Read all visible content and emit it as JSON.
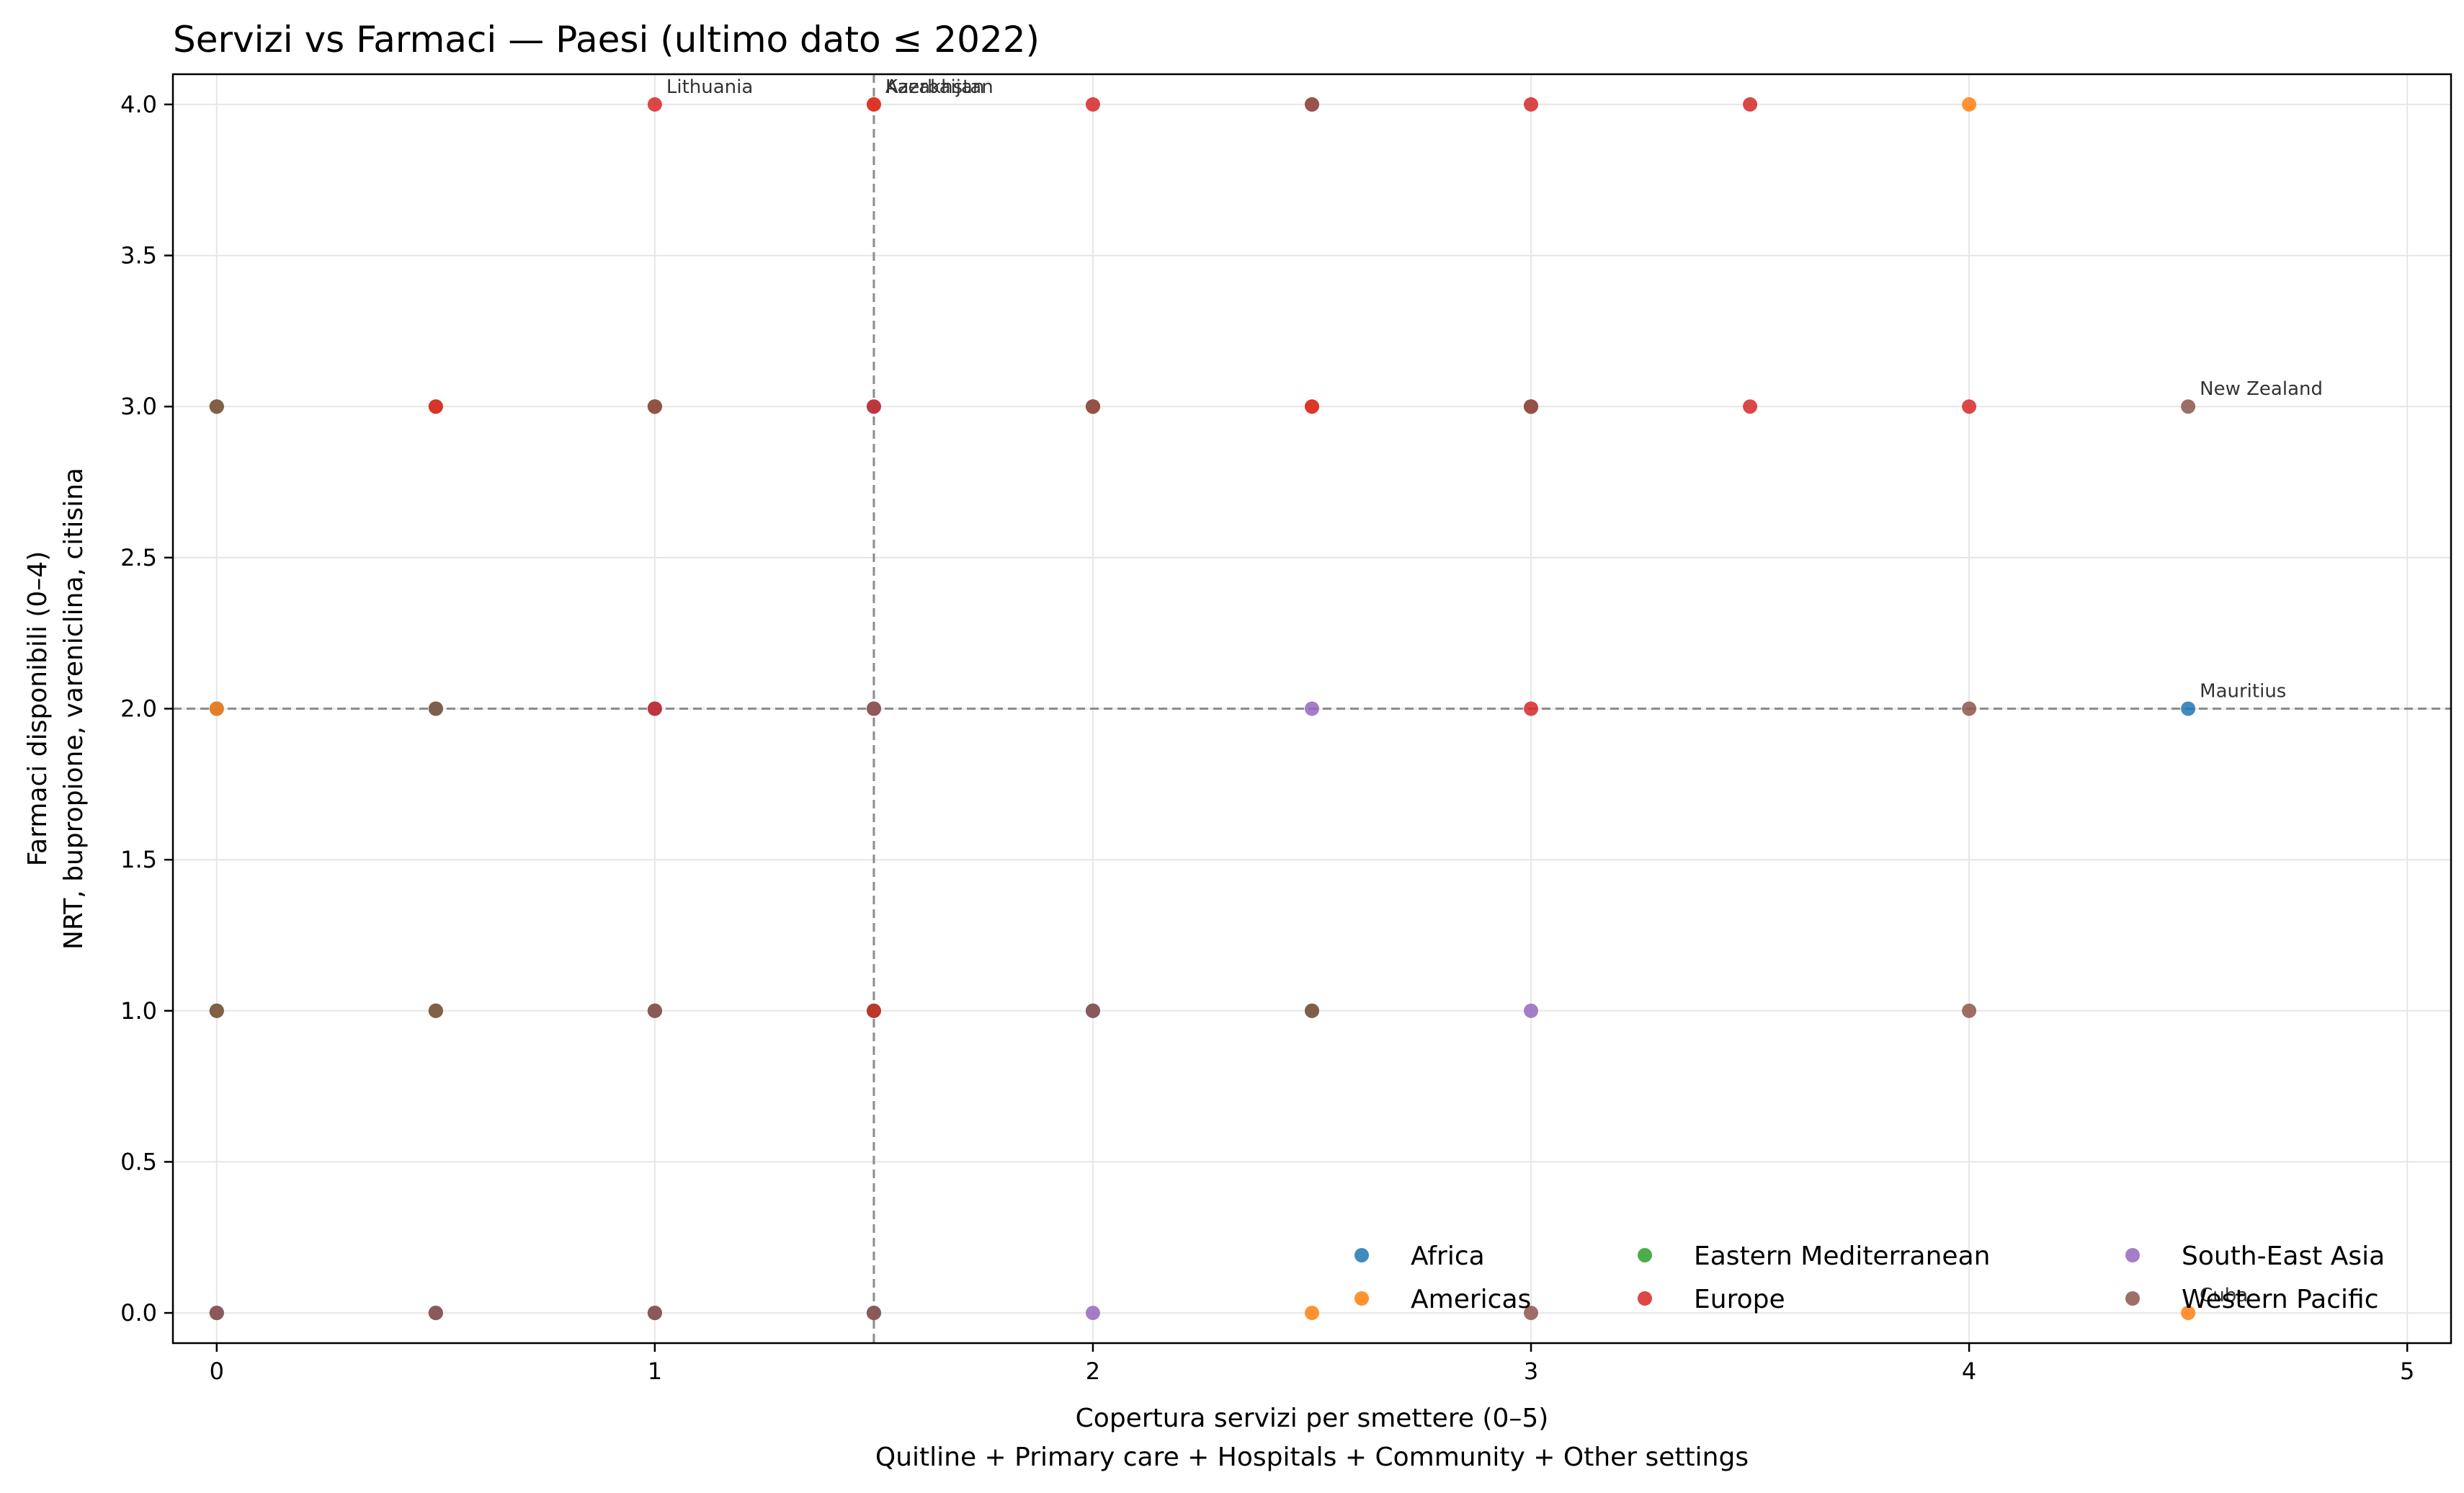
{
  "chart_data": {
    "type": "scatter",
    "title": "Servizi vs Farmaci — Paesi (ultimo dato ≤ 2022)",
    "xlabel": [
      "Copertura servizi per smettere (0–5)",
      "Quitline + Primary care + Hospitals + Community + Other settings"
    ],
    "ylabel": [
      "Farmaci disponibili (0–4)",
      "NRT, bupropione, vareniclina, citisina"
    ],
    "xlim": [
      -0.1,
      5.1
    ],
    "ylim": [
      -0.1,
      4.1
    ],
    "x_ticks": [
      0,
      1,
      2,
      3,
      4,
      5
    ],
    "y_ticks": [
      0.0,
      0.5,
      1.0,
      1.5,
      2.0,
      2.5,
      3.0,
      3.5,
      4.0
    ],
    "x_tick_labels": [
      "0",
      "1",
      "2",
      "3",
      "4",
      "5"
    ],
    "y_tick_labels": [
      "0.0",
      "0.5",
      "1.0",
      "1.5",
      "2.0",
      "2.5",
      "3.0",
      "3.5",
      "4.0"
    ],
    "grid": true,
    "reference_lines": {
      "x": 1.5,
      "y": 2.0
    },
    "legend_position": "lower-right",
    "series": [
      {
        "name": "Africa",
        "color": "#1f77b4",
        "points": [
          [
            0,
            0
          ],
          [
            0,
            1
          ],
          [
            0,
            2
          ],
          [
            0,
            3
          ],
          [
            0.5,
            0
          ],
          [
            0.5,
            1
          ],
          [
            0.5,
            2
          ],
          [
            0.5,
            3
          ],
          [
            1,
            0
          ],
          [
            1,
            1
          ],
          [
            1,
            2
          ],
          [
            1,
            3
          ],
          [
            1.5,
            0
          ],
          [
            1.5,
            1
          ],
          [
            1.5,
            2
          ],
          [
            1.5,
            3
          ],
          [
            2,
            1
          ],
          [
            2,
            3
          ],
          [
            2.5,
            1
          ],
          [
            3,
            3
          ],
          [
            4.5,
            2
          ]
        ]
      },
      {
        "name": "Americas",
        "color": "#ff7f0e",
        "points": [
          [
            0,
            0
          ],
          [
            0,
            1
          ],
          [
            0,
            2
          ],
          [
            0,
            3
          ],
          [
            0.5,
            0
          ],
          [
            0.5,
            1
          ],
          [
            0.5,
            3
          ],
          [
            1,
            0
          ],
          [
            1,
            1
          ],
          [
            1,
            3
          ],
          [
            1.5,
            0
          ],
          [
            1.5,
            2
          ],
          [
            1.5,
            4
          ],
          [
            2,
            3
          ],
          [
            2.5,
            0
          ],
          [
            2.5,
            3
          ],
          [
            3,
            3
          ],
          [
            4,
            4
          ],
          [
            4.5,
            0
          ]
        ]
      },
      {
        "name": "Eastern Mediterranean",
        "color": "#2ca02c",
        "points": [
          [
            0,
            0
          ],
          [
            0,
            1
          ],
          [
            0,
            3
          ],
          [
            0.5,
            0
          ],
          [
            0.5,
            1
          ],
          [
            0.5,
            2
          ],
          [
            1,
            0
          ],
          [
            1,
            1
          ],
          [
            1,
            3
          ],
          [
            1.5,
            0
          ],
          [
            1.5,
            1
          ],
          [
            2,
            1
          ],
          [
            2,
            3
          ],
          [
            2.5,
            1
          ],
          [
            3,
            3
          ]
        ]
      },
      {
        "name": "Europe",
        "color": "#d62728",
        "points": [
          [
            0.5,
            3
          ],
          [
            1,
            2
          ],
          [
            1,
            3
          ],
          [
            1,
            4
          ],
          [
            1.5,
            1
          ],
          [
            1.5,
            3
          ],
          [
            1.5,
            4
          ],
          [
            2,
            3
          ],
          [
            2,
            4
          ],
          [
            2.5,
            3
          ],
          [
            2.5,
            4
          ],
          [
            3,
            2
          ],
          [
            3,
            3
          ],
          [
            3,
            4
          ],
          [
            3.5,
            3
          ],
          [
            3.5,
            4
          ],
          [
            4,
            3
          ]
        ]
      },
      {
        "name": "South-East Asia",
        "color": "#9467bd",
        "points": [
          [
            0,
            0
          ],
          [
            0.5,
            0
          ],
          [
            1,
            0
          ],
          [
            1,
            1
          ],
          [
            1.5,
            0
          ],
          [
            1.5,
            2
          ],
          [
            2,
            0
          ],
          [
            2,
            1
          ],
          [
            2.5,
            2
          ],
          [
            3,
            1
          ]
        ]
      },
      {
        "name": "Western Pacific",
        "color": "#8c564b",
        "points": [
          [
            0,
            0
          ],
          [
            0,
            1
          ],
          [
            0,
            3
          ],
          [
            0.5,
            0
          ],
          [
            0.5,
            1
          ],
          [
            0.5,
            2
          ],
          [
            1,
            0
          ],
          [
            1,
            1
          ],
          [
            1,
            3
          ],
          [
            1.5,
            0
          ],
          [
            1.5,
            2
          ],
          [
            2,
            1
          ],
          [
            2,
            3
          ],
          [
            2.5,
            1
          ],
          [
            2.5,
            4
          ],
          [
            3,
            0
          ],
          [
            3,
            3
          ],
          [
            4,
            1
          ],
          [
            4,
            2
          ],
          [
            4.5,
            3
          ]
        ]
      }
    ],
    "annotations": [
      {
        "text": "Lithuania",
        "x": 1,
        "y": 4
      },
      {
        "text": "Kazakhstan",
        "x": 1.5,
        "y": 4
      },
      {
        "text": "Azerbaijan",
        "x": 1.5,
        "y": 4
      },
      {
        "text": "New Zealand",
        "x": 4.5,
        "y": 3
      },
      {
        "text": "Mauritius",
        "x": 4.5,
        "y": 2
      },
      {
        "text": "Cuba",
        "x": 4.5,
        "y": 0
      }
    ]
  }
}
